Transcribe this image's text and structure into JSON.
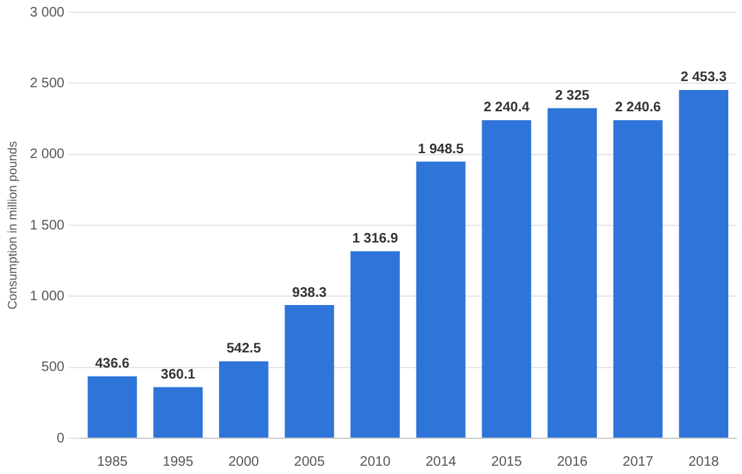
{
  "chart_data": {
    "type": "bar",
    "ylabel": "Consumption in million pounds",
    "categories": [
      "1985",
      "1995",
      "2000",
      "2005",
      "2010",
      "2014",
      "2015",
      "2016",
      "2017",
      "2018"
    ],
    "values": [
      436.6,
      360.1,
      542.5,
      938.3,
      1316.9,
      1948.5,
      2240.4,
      2325,
      2240.6,
      2453.3
    ],
    "value_labels": [
      "436.6",
      "360.1",
      "542.5",
      "938.3",
      "1 316.9",
      "1 948.5",
      "2 240.4",
      "2 325",
      "2 240.6",
      "2 453.3"
    ],
    "color": "#2f74d9",
    "ylim": [
      0,
      3000
    ],
    "yticks": [
      0,
      500,
      {
        "value": 1000,
        "label": "1 000"
      },
      {
        "value": 1500,
        "label": "1 500"
      },
      {
        "value": 2000,
        "label": "2 000"
      },
      {
        "value": 2500,
        "label": "2 500"
      },
      {
        "value": 3000,
        "label": "3 000"
      }
    ],
    "grid": "y"
  }
}
